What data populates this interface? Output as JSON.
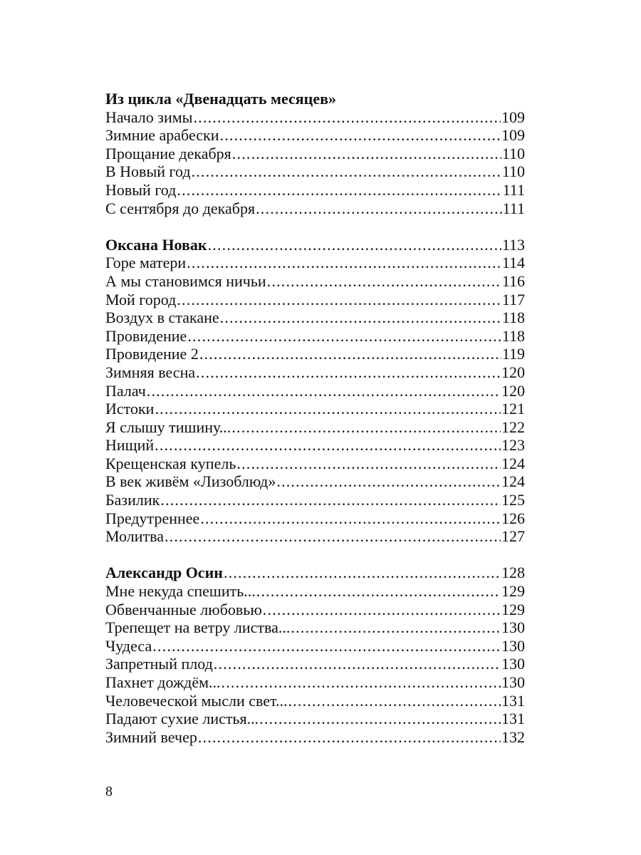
{
  "sections": [
    {
      "heading": "Из цикла «Двенадцать месяцев»",
      "heading_page": null,
      "items": [
        {
          "title": "Начало зимы ",
          "page": "109"
        },
        {
          "title": "Зимние арабески",
          "page": "109"
        },
        {
          "title": "Прощание декабря ",
          "page": "110"
        },
        {
          "title": "В Новый год",
          "page": "110"
        },
        {
          "title": "Новый год ",
          "page": "111"
        },
        {
          "title": "С сентября до декабря ",
          "page": "111"
        }
      ]
    },
    {
      "heading": "Оксана Новак",
      "heading_page": "113",
      "items": [
        {
          "title": "Горе матери",
          "page": "114"
        },
        {
          "title": "А мы становимся ничьи",
          "page": "116"
        },
        {
          "title": "Мой город ",
          "page": "117"
        },
        {
          "title": "Воздух в стакане",
          "page": "118"
        },
        {
          "title": "Провидение",
          "page": "118"
        },
        {
          "title": "Провидение 2",
          "page": "119"
        },
        {
          "title": "Зимняя весна",
          "page": "120"
        },
        {
          "title": "Палач ",
          "page": "120"
        },
        {
          "title": "Истоки ",
          "page": "121"
        },
        {
          "title": "Я слышу тишину... ",
          "page": "122"
        },
        {
          "title": "Нищий ",
          "page": "123"
        },
        {
          "title": "Крещенская купель ",
          "page": "124"
        },
        {
          "title": "В век живём «Лизоблюд» ",
          "page": "124"
        },
        {
          "title": "Базилик",
          "page": "125"
        },
        {
          "title": "Предутреннее ",
          "page": "126"
        },
        {
          "title": "Молитва",
          "page": "127"
        }
      ]
    },
    {
      "heading": "Александр Осин",
      "heading_page": "128",
      "items": [
        {
          "title": "Мне некуда спешить... ",
          "page": "129"
        },
        {
          "title": "Обвенчанные любовью",
          "page": "129"
        },
        {
          "title": "Трепещет на ветру листва... ",
          "page": "130"
        },
        {
          "title": "Чудеса",
          "page": "130"
        },
        {
          "title": "Запретный плод ",
          "page": "130"
        },
        {
          "title": "Пахнет дождём... ",
          "page": "130"
        },
        {
          "title": "Человеческой мысли свет... ",
          "page": "131"
        },
        {
          "title": "Падают сухие листья... ",
          "page": "131"
        },
        {
          "title": "Зимний вечер ",
          "page": "132"
        }
      ]
    }
  ],
  "page_number": "8"
}
